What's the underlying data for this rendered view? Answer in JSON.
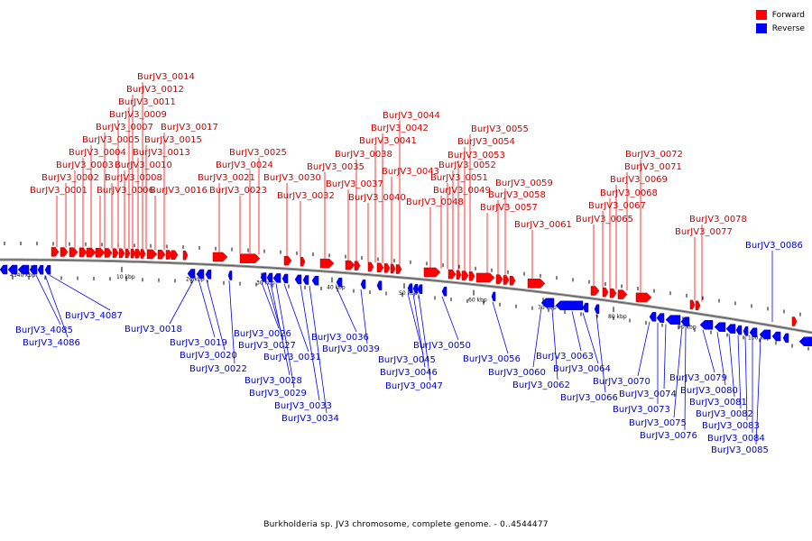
{
  "colors": {
    "forward": "#ff0000",
    "reverse": "#0000ff",
    "forward_text": "#cc0000",
    "reverse_text": "#0000cc",
    "backbone": "#808080"
  },
  "legend": {
    "forward_label": "Forward",
    "reverse_label": "Reverse"
  },
  "caption": "Burkholderia sp. JV3 chromosome, complete genome. - 0..4544477",
  "ticks": [
    "4540 kbp",
    "10 kbp",
    "20 kbp",
    "30 kbp",
    "40 kbp",
    "50 kbp",
    "60 kbp",
    "70 kbp",
    "80 kbp",
    "90 kbp",
    "100 kbp"
  ],
  "forward_genes": [
    "BurJV3_0001",
    "BurJV3_0002",
    "BurJV3_0003",
    "BurJV3_0004",
    "BurJV3_0005",
    "BurJV3_0006",
    "BurJV3_0007",
    "BurJV3_0008",
    "BurJV3_0009",
    "BurJV3_0010",
    "BurJV3_0011",
    "BurJV3_0012",
    "BurJV3_0013",
    "BurJV3_0014",
    "BurJV3_0015",
    "BurJV3_0016",
    "BurJV3_0017",
    "BurJV3_0021",
    "BurJV3_0023",
    "BurJV3_0024",
    "BurJV3_0025",
    "BurJV3_0030",
    "BurJV3_0032",
    "BurJV3_0035",
    "BurJV3_0037",
    "BurJV3_0038",
    "BurJV3_0040",
    "BurJV3_0041",
    "BurJV3_0042",
    "BurJV3_0043",
    "BurJV3_0044",
    "BurJV3_0048",
    "BurJV3_0049",
    "BurJV3_0051",
    "BurJV3_0052",
    "BurJV3_0053",
    "BurJV3_0054",
    "BurJV3_0055",
    "BurJV3_0057",
    "BurJV3_0058",
    "BurJV3_0059",
    "BurJV3_0061",
    "BurJV3_0065",
    "BurJV3_0067",
    "BurJV3_0068",
    "BurJV3_0069",
    "BurJV3_0071",
    "BurJV3_0072",
    "BurJV3_0077",
    "BurJV3_0078"
  ],
  "reverse_genes": [
    "BurJV3_4085",
    "BurJV3_4086",
    "BurJV3_4087",
    "BurJV3_0018",
    "BurJV3_0019",
    "BurJV3_0020",
    "BurJV3_0022",
    "BurJV3_0026",
    "BurJV3_0027",
    "BurJV3_0028",
    "BurJV3_0029",
    "BurJV3_0031",
    "BurJV3_0033",
    "BurJV3_0034",
    "BurJV3_0036",
    "BurJV3_0039",
    "BurJV3_0045",
    "BurJV3_0046",
    "BurJV3_0047",
    "BurJV3_0050",
    "BurJV3_0056",
    "BurJV3_0060",
    "BurJV3_0062",
    "BurJV3_0063",
    "BurJV3_0064",
    "BurJV3_0066",
    "BurJV3_0070",
    "BurJV3_0073",
    "BurJV3_0074",
    "BurJV3_0075",
    "BurJV3_0076",
    "BurJV3_0079",
    "BurJV3_0080",
    "BurJV3_0081",
    "BurJV3_0082",
    "BurJV3_0083",
    "BurJV3_0084",
    "BurJV3_0085",
    "BurJV3_0086"
  ]
}
